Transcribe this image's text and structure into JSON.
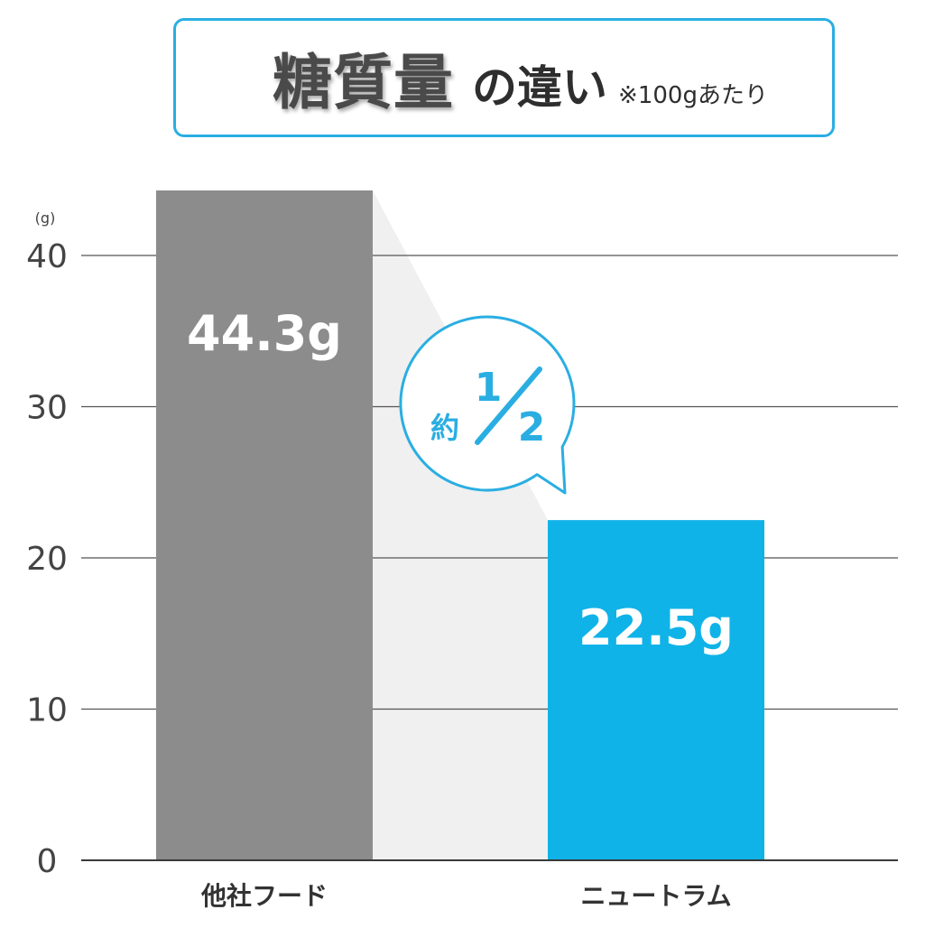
{
  "chart_data": {
    "type": "bar",
    "title": "糖質量",
    "title_suffix": "の違い",
    "subtitle": "※100gあたり",
    "categories": [
      "他社フード",
      "ニュートラム"
    ],
    "values": [
      44.3,
      22.5
    ],
    "data_labels": [
      "44.3g",
      "22.5g"
    ],
    "ylabel": "(g)",
    "yticks": [
      0,
      10,
      20,
      30,
      40
    ],
    "ylim": [
      0,
      45
    ],
    "grid": true,
    "bar_colors": [
      "#8c8c8c",
      "#10b3e8"
    ],
    "annotation": {
      "prefix": "約",
      "numerator": "1",
      "denominator": "2"
    }
  },
  "colors": {
    "accent": "#2aaee2",
    "connector": "#f0f0f0",
    "gridline": "#555555",
    "axis": "#3a3a3a"
  }
}
